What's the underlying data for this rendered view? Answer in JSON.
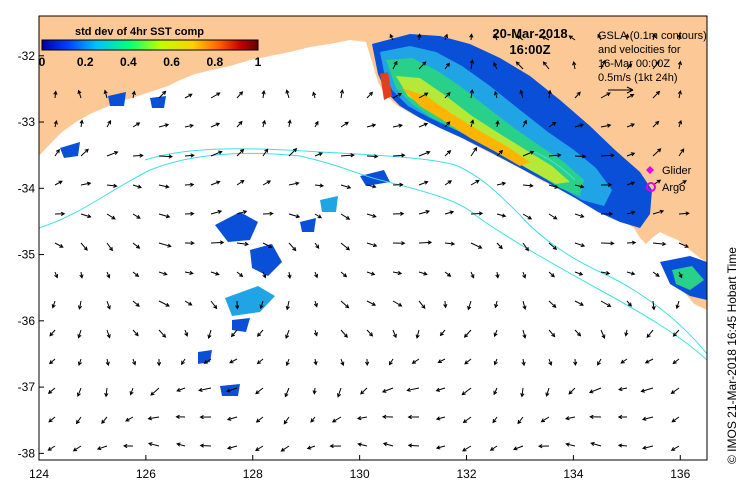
{
  "map": {
    "colorbar": {
      "title": "std dev of 4hr SST comp",
      "ticks": [
        "0",
        "0.2",
        "0.4",
        "0.6",
        "0.8",
        "1"
      ],
      "colors": [
        "#0000a0",
        "#0040ff",
        "#00c0ff",
        "#00ff80",
        "#c0ff00",
        "#ffd000",
        "#ff6000",
        "#c00000",
        "#600000"
      ]
    },
    "date": "20-Mar-2018",
    "time": "16:00Z",
    "info_lines": [
      "GSLA (0.1m contours)",
      "and velocities for",
      "16-Mar 00:00Z",
      "0.5m/s (1kt 24h)"
    ],
    "legend": [
      {
        "label": "Glider",
        "color": "#e000e0",
        "symbol": "diamond"
      },
      {
        "label": "Argo",
        "color": "#e000e0",
        "symbol": "circle"
      }
    ],
    "credit": "© IMOS 21-Mar-2018 16:45 Hobart Time",
    "x_ticks": [
      "124",
      "126",
      "128",
      "130",
      "132",
      "134",
      "136"
    ],
    "y_ticks": [
      "-32",
      "-33",
      "-34",
      "-35",
      "-36",
      "-37",
      "-38"
    ],
    "x_values": [
      124,
      126,
      128,
      130,
      132,
      134,
      136
    ],
    "y_values": [
      -32,
      -33,
      -34,
      -35,
      -36,
      -37,
      -38
    ],
    "lon_range": [
      124,
      136.5
    ],
    "lat_range": [
      -31.4,
      -38.1
    ],
    "colors": {
      "land": "#fcc896",
      "ocean": "#ffffff",
      "contour": "#40e0e0",
      "arrow": "#000000"
    }
  }
}
